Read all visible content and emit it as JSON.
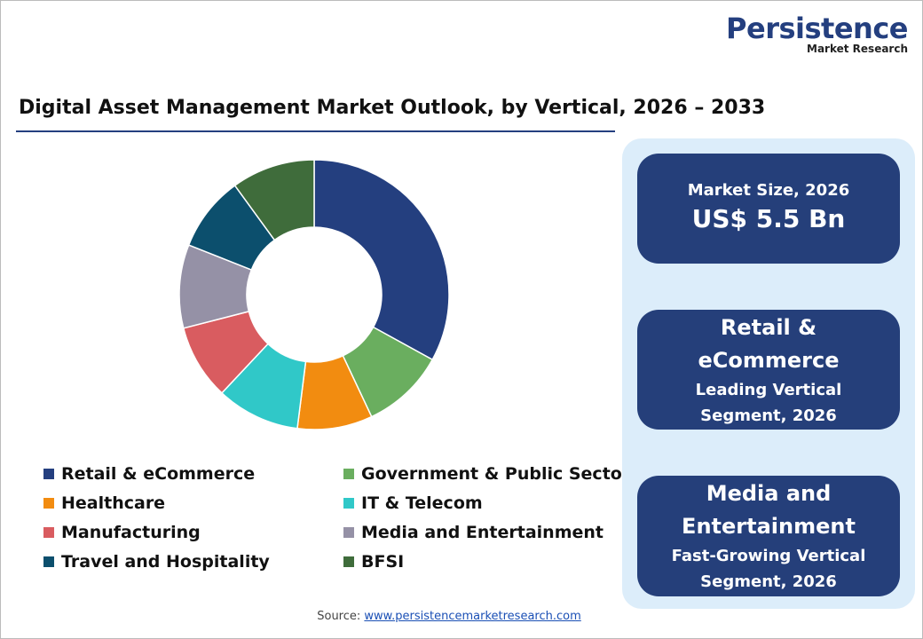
{
  "logo": {
    "name": "Persistence",
    "sub": "Market Research"
  },
  "chart_data": {
    "type": "pie",
    "title": "Digital Asset Management Market Outlook, by Vertical, 2026 – 2033",
    "categories": [
      "Retail & eCommerce",
      "Government & Public Sector",
      "Healthcare",
      "IT & Telecom",
      "Manufacturing",
      "Media and Entertainment",
      "Travel and Hospitality",
      "BFSI"
    ],
    "values": [
      33,
      10,
      9,
      10,
      9,
      10,
      9,
      10
    ],
    "colors": [
      "#243f7f",
      "#6aae5f",
      "#f28c10",
      "#30c8c8",
      "#d95c60",
      "#9591a6",
      "#0c4f6d",
      "#3f6c3b"
    ],
    "donut": true
  },
  "cards": [
    {
      "heading": "Market Size, 2026",
      "value": "US$ 5.5 Bn"
    },
    {
      "heading": "Retail & eCommerce",
      "value": "Leading Vertical Segment, 2026"
    },
    {
      "heading": "Media and Entertainment",
      "value": "Fast-Growing Vertical Segment, 2026"
    }
  ],
  "source": {
    "label": "Source:",
    "url": "www.persistencemarketresearch.com"
  }
}
